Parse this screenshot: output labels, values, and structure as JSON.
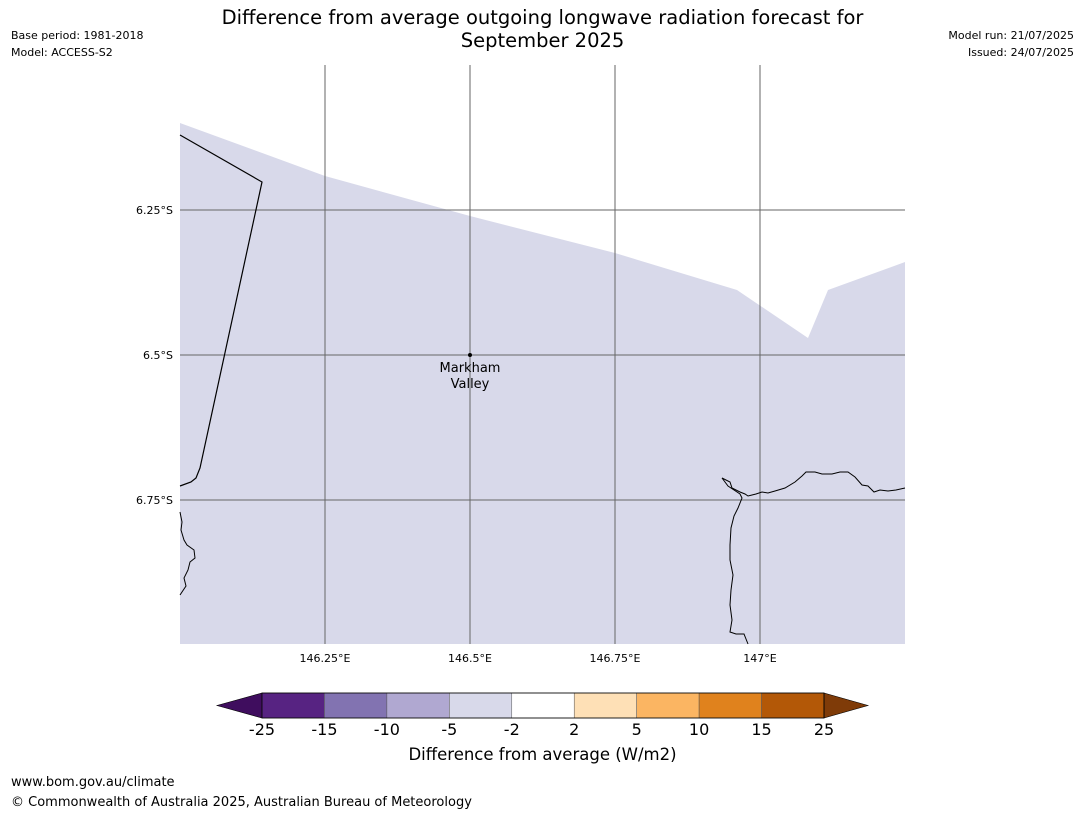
{
  "header": {
    "title_line1": "Difference from average outgoing longwave radiation forecast for",
    "title_line2": "September 2025",
    "base_period": "Base period: 1981-2018",
    "model": "Model: ACCESS-S2",
    "model_run": "Model run: 21/07/2025",
    "issued": "Issued: 24/07/2025"
  },
  "map": {
    "fill_color": "#d8d9ea",
    "lon_ticks": [
      {
        "value": 146.25,
        "label": "146.25°E"
      },
      {
        "value": 146.5,
        "label": "146.5°E"
      },
      {
        "value": 146.75,
        "label": "146.75°E"
      },
      {
        "value": 147.0,
        "label": "147°E"
      }
    ],
    "lat_ticks": [
      {
        "value": -6.25,
        "label": "6.25°S"
      },
      {
        "value": -6.5,
        "label": "6.5°S"
      },
      {
        "value": -6.75,
        "label": "6.75°S"
      }
    ],
    "location": {
      "name_line1": "Markham",
      "name_line2": "Valley",
      "lon": 146.5,
      "lat": -6.5
    }
  },
  "colorbar": {
    "label": "Difference from average (W/m2)",
    "ticks": [
      "-25",
      "-15",
      "-10",
      "-5",
      "-2",
      "2",
      "5",
      "10",
      "15",
      "25"
    ],
    "colors": [
      "#3f0d5e",
      "#572382",
      "#8273b1",
      "#b0a8d1",
      "#d8d9ea",
      "#ffffff",
      "#fee0b6",
      "#fbb562",
      "#e0821d",
      "#b35807",
      "#7f3b08"
    ]
  },
  "footer": {
    "url": "www.bom.gov.au/climate",
    "copyright": "© Commonwealth of Australia 2025, Australian Bureau of Meteorology"
  }
}
